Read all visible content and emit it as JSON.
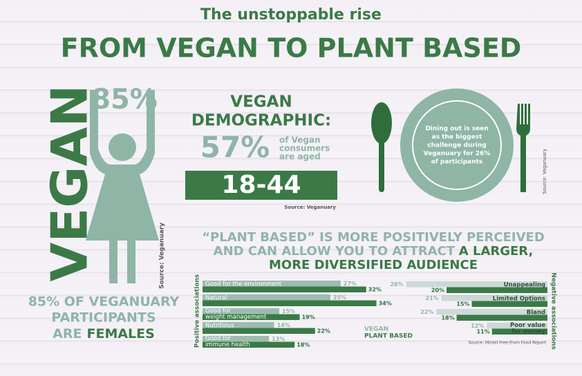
{
  "header": {
    "kicker": "The unstoppable rise",
    "title": "FROM VEGAN TO PLANT BASED"
  },
  "vegan": {
    "word": "VEGAN",
    "percent": "85%",
    "source": "Source: Veganuary",
    "caption": [
      "85% OF VEGANUARY",
      "PARTICIPANTS",
      "ARE"
    ],
    "caption_highlight": "FEMALES"
  },
  "demographic": {
    "title": [
      "VEGAN",
      "DEMOGRAPHIC:"
    ],
    "percent": "57%",
    "note": [
      "of Vegan",
      "consumers",
      "are aged"
    ],
    "ages": "18-44",
    "source": "Source: Veganuary"
  },
  "dining": {
    "text": [
      "Dining out is seen",
      "as the biggest",
      "challenge during",
      "Veganuary for 26%",
      "of participants"
    ],
    "source": "Source: Veganuary"
  },
  "associations": {
    "headline": [
      [
        "“PLANT BASED” IS MORE POSITIVELY PERCEIVED"
      ],
      [
        "AND CAN ALLOW YOU TO ATTRACT",
        "A LARGER,"
      ],
      [
        "MORE DIVERSIFIED AUDIENCE"
      ]
    ],
    "series": [
      {
        "name": "VEGAN",
        "color": "#9dbcb0"
      },
      {
        "name": "PLANT BASED",
        "color": "#3b7a47"
      }
    ],
    "positive": {
      "title": "Positive associations",
      "categories": [
        [
          "Good for the environment"
        ],
        [
          "Natural"
        ],
        [
          "Good for",
          "weight management"
        ],
        [
          "Nutritious"
        ],
        [
          "Good for",
          "immune health"
        ]
      ],
      "vegan": [
        27,
        25,
        15,
        14,
        13
      ],
      "vegan_labels": [
        "27%",
        "25%",
        "15%",
        "14%",
        "13%"
      ],
      "plant": [
        32,
        34,
        19,
        22,
        18
      ],
      "plant_labels": [
        "32%",
        "34%",
        "19%",
        "22%",
        "18%"
      ]
    },
    "negative": {
      "title": "Negative associations",
      "categories": [
        [
          "Unappealing"
        ],
        [
          "Limited Options"
        ],
        [
          "Bland"
        ],
        [
          "Poor value",
          "for money"
        ]
      ],
      "vegan": [
        28,
        21,
        22,
        12
      ],
      "vegan_labels": [
        "28%",
        "21%",
        "22%",
        "12%"
      ],
      "plant": [
        20,
        15,
        18,
        11
      ],
      "plant_labels": [
        "20%",
        "15%",
        "18%",
        "11%"
      ]
    },
    "source": "Source: Mintel Free-From Food Report"
  }
}
